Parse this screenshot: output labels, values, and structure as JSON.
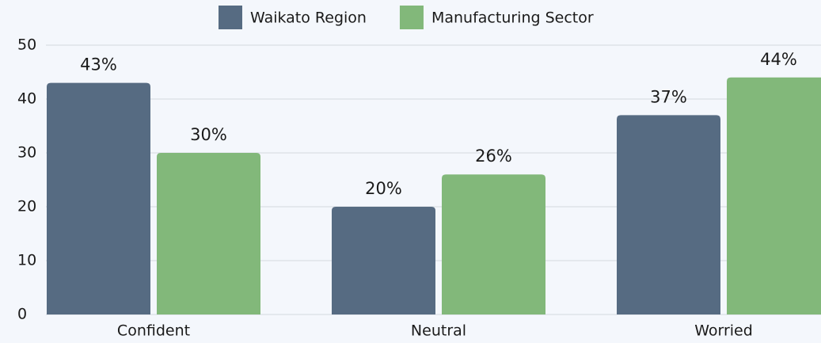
{
  "chart_data": {
    "type": "bar",
    "categories": [
      "Confident",
      "Neutral",
      "Worried"
    ],
    "series": [
      {
        "name": "Waikato Region",
        "color": "#566b82",
        "values": [
          43,
          20,
          37
        ],
        "value_labels": [
          "43%",
          "20%",
          "37%"
        ]
      },
      {
        "name": "Manufacturing Sector",
        "color": "#82b87a",
        "values": [
          30,
          26,
          44
        ],
        "value_labels": [
          "30%",
          "26%",
          "44%"
        ]
      }
    ],
    "ylim": [
      0,
      50
    ],
    "yticks": [
      0,
      10,
      20,
      30,
      40,
      50
    ],
    "grid": true,
    "legend": "top"
  }
}
